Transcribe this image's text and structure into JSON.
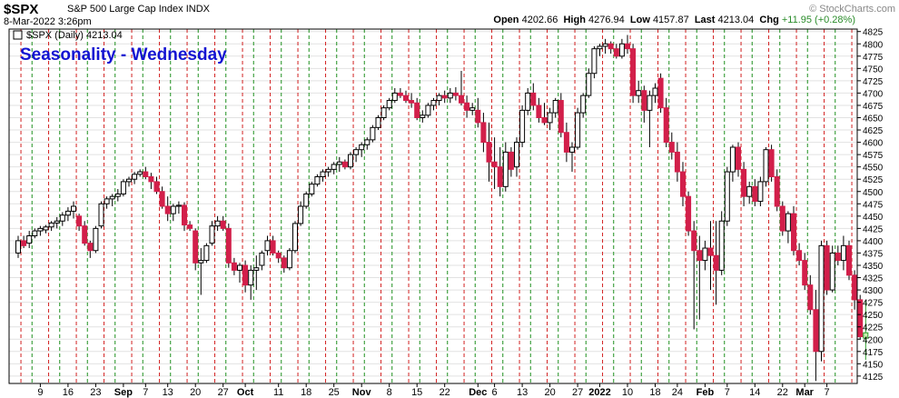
{
  "header": {
    "symbol": "$SPX",
    "name": "S&P 500 Large Cap Index",
    "exchange": "INDX",
    "date": "8-Mar-2022 3:26pm",
    "open_label": "Open",
    "open": "4202.66",
    "high_label": "High",
    "high": "4276.94",
    "low_label": "Low",
    "low": "4157.87",
    "last_label": "Last",
    "last": "4213.04",
    "chg_label": "Chg",
    "chg": "+11.95 (+0.28%)",
    "watermark": "© StockCharts.com"
  },
  "colors": {
    "up": "#ffffff",
    "down": "#d21f4a",
    "last_bar": "#c8f0b0",
    "wednesday_line": "#1f8f1f",
    "monday_line": "#d21f1f",
    "title": "#1414d2"
  },
  "chart_data": {
    "type": "candlestick",
    "title": "Seasonality - Wednesday",
    "legend": "$SPX (Daily) 4213.04",
    "ylim": [
      4110,
      4830
    ],
    "ticks": [
      4125,
      4150,
      4175,
      4200,
      4225,
      4250,
      4275,
      4300,
      4325,
      4350,
      4375,
      4400,
      4425,
      4450,
      4475,
      4500,
      4525,
      4550,
      4575,
      4600,
      4625,
      4650,
      4675,
      4700,
      4725,
      4750,
      4775,
      4800,
      4825
    ],
    "x_labels": [
      {
        "i": 4,
        "text": "9",
        "bold": false
      },
      {
        "i": 9,
        "text": "16",
        "bold": false
      },
      {
        "i": 14,
        "text": "23",
        "bold": false
      },
      {
        "i": 19,
        "text": "Sep",
        "bold": true
      },
      {
        "i": 23,
        "text": "7",
        "bold": false
      },
      {
        "i": 27,
        "text": "13",
        "bold": false
      },
      {
        "i": 32,
        "text": "20",
        "bold": false
      },
      {
        "i": 37,
        "text": "27",
        "bold": false
      },
      {
        "i": 41,
        "text": "Oct",
        "bold": true
      },
      {
        "i": 47,
        "text": "11",
        "bold": false
      },
      {
        "i": 52,
        "text": "18",
        "bold": false
      },
      {
        "i": 57,
        "text": "25",
        "bold": false
      },
      {
        "i": 62,
        "text": "Nov",
        "bold": true
      },
      {
        "i": 67,
        "text": "8",
        "bold": false
      },
      {
        "i": 72,
        "text": "15",
        "bold": false
      },
      {
        "i": 77,
        "text": "22",
        "bold": false
      },
      {
        "i": 83,
        "text": "Dec",
        "bold": true
      },
      {
        "i": 86,
        "text": "6",
        "bold": false
      },
      {
        "i": 91,
        "text": "13",
        "bold": false
      },
      {
        "i": 96,
        "text": "20",
        "bold": false
      },
      {
        "i": 101,
        "text": "27",
        "bold": false
      },
      {
        "i": 105,
        "text": "2022",
        "bold": true
      },
      {
        "i": 110,
        "text": "10",
        "bold": false
      },
      {
        "i": 115,
        "text": "18",
        "bold": false
      },
      {
        "i": 119,
        "text": "24",
        "bold": false
      },
      {
        "i": 124,
        "text": "Feb",
        "bold": true
      },
      {
        "i": 128,
        "text": "7",
        "bold": false
      },
      {
        "i": 133,
        "text": "14",
        "bold": false
      },
      {
        "i": 138,
        "text": "22",
        "bold": false
      },
      {
        "i": 142,
        "text": "Mar",
        "bold": true
      },
      {
        "i": 146,
        "text": "7",
        "bold": false
      }
    ],
    "candles": [
      [
        4375,
        4410,
        4365,
        4400
      ],
      [
        4400,
        4410,
        4385,
        4390
      ],
      [
        4395,
        4420,
        4385,
        4410
      ],
      [
        4410,
        4425,
        4405,
        4420
      ],
      [
        4420,
        4430,
        4410,
        4425
      ],
      [
        4422,
        4432,
        4415,
        4428
      ],
      [
        4428,
        4440,
        4420,
        4436
      ],
      [
        4436,
        4448,
        4425,
        4440
      ],
      [
        4440,
        4458,
        4430,
        4452
      ],
      [
        4452,
        4468,
        4440,
        4460
      ],
      [
        4460,
        4480,
        4445,
        4470
      ],
      [
        4450,
        4455,
        4420,
        4430
      ],
      [
        4430,
        4440,
        4390,
        4395
      ],
      [
        4395,
        4400,
        4365,
        4380
      ],
      [
        4380,
        4430,
        4375,
        4425
      ],
      [
        4430,
        4480,
        4425,
        4475
      ],
      [
        4475,
        4490,
        4465,
        4485
      ],
      [
        4485,
        4495,
        4470,
        4490
      ],
      [
        4490,
        4505,
        4480,
        4495
      ],
      [
        4495,
        4525,
        4490,
        4520
      ],
      [
        4520,
        4530,
        4510,
        4525
      ],
      [
        4525,
        4540,
        4515,
        4535
      ],
      [
        4535,
        4545,
        4530,
        4540
      ],
      [
        4540,
        4550,
        4525,
        4530
      ],
      [
        4530,
        4538,
        4505,
        4520
      ],
      [
        4520,
        4530,
        4495,
        4500
      ],
      [
        4500,
        4510,
        4465,
        4470
      ],
      [
        4470,
        4490,
        4440,
        4455
      ],
      [
        4455,
        4475,
        4440,
        4470
      ],
      [
        4470,
        4480,
        4455,
        4472
      ],
      [
        4472,
        4478,
        4420,
        4432
      ],
      [
        4432,
        4440,
        4420,
        4425
      ],
      [
        4420,
        4425,
        4340,
        4355
      ],
      [
        4355,
        4385,
        4290,
        4360
      ],
      [
        4360,
        4395,
        4355,
        4390
      ],
      [
        4395,
        4440,
        4390,
        4430
      ],
      [
        4430,
        4450,
        4420,
        4440
      ],
      [
        4440,
        4450,
        4420,
        4425
      ],
      [
        4425,
        4435,
        4345,
        4355
      ],
      [
        4355,
        4365,
        4330,
        4340
      ],
      [
        4340,
        4355,
        4315,
        4350
      ],
      [
        4350,
        4360,
        4295,
        4310
      ],
      [
        4310,
        4350,
        4280,
        4340
      ],
      [
        4340,
        4370,
        4300,
        4345
      ],
      [
        4350,
        4380,
        4340,
        4375
      ],
      [
        4380,
        4410,
        4370,
        4400
      ],
      [
        4400,
        4410,
        4370,
        4375
      ],
      [
        4375,
        4380,
        4355,
        4365
      ],
      [
        4365,
        4370,
        4335,
        4345
      ],
      [
        4345,
        4385,
        4340,
        4380
      ],
      [
        4380,
        4440,
        4375,
        4435
      ],
      [
        4435,
        4480,
        4430,
        4470
      ],
      [
        4470,
        4500,
        4465,
        4495
      ],
      [
        4495,
        4520,
        4490,
        4515
      ],
      [
        4515,
        4535,
        4510,
        4530
      ],
      [
        4530,
        4545,
        4520,
        4540
      ],
      [
        4540,
        4550,
        4530,
        4545
      ],
      [
        4545,
        4560,
        4535,
        4555
      ],
      [
        4555,
        4570,
        4540,
        4560
      ],
      [
        4560,
        4565,
        4545,
        4550
      ],
      [
        4550,
        4580,
        4545,
        4575
      ],
      [
        4575,
        4590,
        4560,
        4585
      ],
      [
        4585,
        4600,
        4570,
        4595
      ],
      [
        4595,
        4610,
        4585,
        4605
      ],
      [
        4605,
        4635,
        4600,
        4630
      ],
      [
        4630,
        4655,
        4625,
        4650
      ],
      [
        4650,
        4675,
        4645,
        4670
      ],
      [
        4670,
        4690,
        4665,
        4685
      ],
      [
        4685,
        4710,
        4680,
        4700
      ],
      [
        4700,
        4710,
        4690,
        4695
      ],
      [
        4695,
        4705,
        4680,
        4685
      ],
      [
        4685,
        4700,
        4670,
        4680
      ],
      [
        4680,
        4690,
        4645,
        4650
      ],
      [
        4650,
        4665,
        4640,
        4655
      ],
      [
        4655,
        4680,
        4650,
        4675
      ],
      [
        4675,
        4690,
        4665,
        4685
      ],
      [
        4685,
        4700,
        4675,
        4695
      ],
      [
        4695,
        4705,
        4680,
        4690
      ],
      [
        4690,
        4710,
        4680,
        4700
      ],
      [
        4700,
        4712,
        4685,
        4695
      ],
      [
        4695,
        4745,
        4675,
        4680
      ],
      [
        4680,
        4695,
        4650,
        4665
      ],
      [
        4665,
        4680,
        4655,
        4670
      ],
      [
        4665,
        4690,
        4630,
        4640
      ],
      [
        4640,
        4660,
        4580,
        4600
      ],
      [
        4600,
        4640,
        4520,
        4560
      ],
      [
        4560,
        4610,
        4505,
        4550
      ],
      [
        4550,
        4590,
        4490,
        4510
      ],
      [
        4510,
        4600,
        4500,
        4580
      ],
      [
        4580,
        4590,
        4530,
        4545
      ],
      [
        4550,
        4610,
        4530,
        4600
      ],
      [
        4600,
        4675,
        4590,
        4665
      ],
      [
        4665,
        4710,
        4655,
        4700
      ],
      [
        4700,
        4720,
        4665,
        4675
      ],
      [
        4675,
        4690,
        4640,
        4650
      ],
      [
        4650,
        4680,
        4635,
        4640
      ],
      [
        4640,
        4670,
        4625,
        4660
      ],
      [
        4660,
        4690,
        4650,
        4685
      ],
      [
        4685,
        4700,
        4610,
        4620
      ],
      [
        4620,
        4640,
        4560,
        4580
      ],
      [
        4580,
        4600,
        4540,
        4590
      ],
      [
        4590,
        4670,
        4585,
        4660
      ],
      [
        4660,
        4700,
        4650,
        4695
      ],
      [
        4695,
        4750,
        4690,
        4740
      ],
      [
        4740,
        4795,
        4730,
        4790
      ],
      [
        4790,
        4800,
        4775,
        4795
      ],
      [
        4795,
        4810,
        4780,
        4800
      ],
      [
        4800,
        4805,
        4780,
        4790
      ],
      [
        4790,
        4800,
        4770,
        4775
      ],
      [
        4775,
        4810,
        4770,
        4800
      ],
      [
        4800,
        4818,
        4780,
        4790
      ],
      [
        4790,
        4800,
        4680,
        4695
      ],
      [
        4695,
        4725,
        4680,
        4705
      ],
      [
        4705,
        4715,
        4640,
        4665
      ],
      [
        4665,
        4705,
        4590,
        4695
      ],
      [
        4695,
        4720,
        4680,
        4710
      ],
      [
        4730,
        4740,
        4660,
        4670
      ],
      [
        4670,
        4690,
        4590,
        4600
      ],
      [
        4600,
        4620,
        4565,
        4580
      ],
      [
        4580,
        4600,
        4520,
        4540
      ],
      [
        4540,
        4560,
        4470,
        4490
      ],
      [
        4490,
        4500,
        4410,
        4420
      ],
      [
        4420,
        4440,
        4220,
        4380
      ],
      [
        4380,
        4410,
        4240,
        4360
      ],
      [
        4360,
        4400,
        4340,
        4385
      ],
      [
        4385,
        4440,
        4300,
        4370
      ],
      [
        4370,
        4440,
        4270,
        4340
      ],
      [
        4340,
        4460,
        4330,
        4440
      ],
      [
        4440,
        4550,
        4430,
        4540
      ],
      [
        4540,
        4595,
        4520,
        4590
      ],
      [
        4590,
        4600,
        4530,
        4545
      ],
      [
        4545,
        4560,
        4470,
        4490
      ],
      [
        4490,
        4520,
        4475,
        4510
      ],
      [
        4510,
        4525,
        4470,
        4480
      ],
      [
        4480,
        4530,
        4470,
        4520
      ],
      [
        4520,
        4590,
        4510,
        4585
      ],
      [
        4585,
        4595,
        4520,
        4530
      ],
      [
        4530,
        4545,
        4460,
        4470
      ],
      [
        4470,
        4480,
        4410,
        4420
      ],
      [
        4420,
        4460,
        4395,
        4455
      ],
      [
        4455,
        4470,
        4370,
        4380
      ],
      [
        4380,
        4395,
        4350,
        4360
      ],
      [
        4360,
        4375,
        4300,
        4310
      ],
      [
        4310,
        4330,
        4250,
        4260
      ],
      [
        4260,
        4300,
        4115,
        4175
      ],
      [
        4175,
        4400,
        4155,
        4390
      ],
      [
        4390,
        4400,
        4290,
        4300
      ],
      [
        4300,
        4390,
        4295,
        4375
      ],
      [
        4375,
        4390,
        4350,
        4360
      ],
      [
        4360,
        4410,
        4340,
        4390
      ],
      [
        4390,
        4400,
        4320,
        4330
      ],
      [
        4330,
        4340,
        4260,
        4280
      ],
      [
        4280,
        4290,
        4200,
        4205
      ],
      [
        4202,
        4277,
        4158,
        4213
      ]
    ]
  }
}
